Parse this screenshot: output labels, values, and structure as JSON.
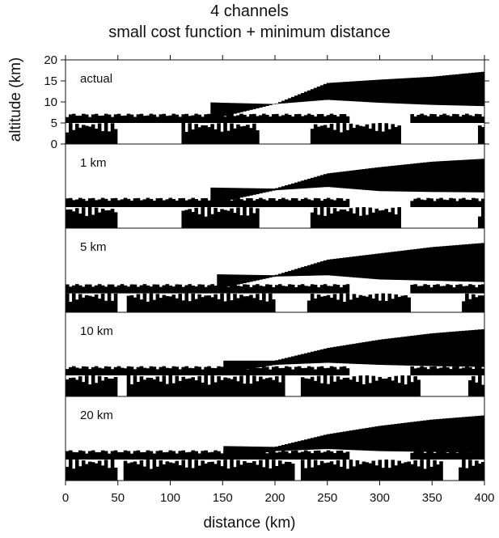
{
  "chart_data": {
    "type": "heatmap",
    "title": "4 channels",
    "subtitle": "small cost function + minimum distance",
    "xlabel": "distance (km)",
    "ylabel": "altitude (km)",
    "xlim": [
      0,
      400
    ],
    "ylim": [
      0,
      20
    ],
    "x_ticks": [
      0,
      50,
      100,
      150,
      200,
      250,
      300,
      350,
      400
    ],
    "x_tick_labels": [
      "0",
      "50",
      "100",
      "150",
      "200",
      "250",
      "300",
      "350",
      "400"
    ],
    "y_ticks": [
      0,
      5,
      10,
      15,
      20
    ],
    "y_tick_labels": [
      "0",
      "5",
      "10",
      "15",
      "20"
    ],
    "colors": {
      "ice": "#141414",
      "water": "#9e9e9e",
      "clear": "#ffffff"
    },
    "panels": [
      {
        "label": "actual",
        "upper_top": [
          10.5,
          10.8,
          10.2,
          9.8,
          9.5,
          14.5,
          15.3,
          16.0,
          17.2
        ],
        "upper_bottom": [
          6.8,
          7.0,
          6.8,
          6.5,
          9.5,
          10.5,
          9.8,
          9.3,
          9.0
        ],
        "upper_start_km": 140,
        "low_cloud_top": 5.0,
        "water_segments_km": [
          [
            0,
            50
          ],
          [
            110,
            185
          ],
          [
            235,
            320
          ],
          [
            395,
            400
          ]
        ]
      },
      {
        "label": "1 km",
        "upper_top": [
          10.0,
          10.2,
          9.8,
          9.6,
          9.4,
          13.0,
          14.5,
          15.8,
          16.5
        ],
        "upper_bottom": [
          6.5,
          6.8,
          6.6,
          6.3,
          9.0,
          9.8,
          8.8,
          8.6,
          8.5
        ],
        "upper_start_km": 140,
        "low_cloud_top": 5.0,
        "water_segments_km": [
          [
            0,
            50
          ],
          [
            110,
            185
          ],
          [
            235,
            320
          ],
          [
            395,
            400
          ]
        ]
      },
      {
        "label": "5 km",
        "upper_top": [
          9.5,
          9.5,
          9.2,
          9.0,
          8.8,
          12.5,
          14.0,
          15.5,
          16.5
        ],
        "upper_bottom": [
          6.0,
          6.2,
          6.0,
          5.8,
          8.5,
          8.8,
          7.8,
          7.5,
          7.2
        ],
        "upper_start_km": 145,
        "low_cloud_top": 4.5,
        "water_segments_km": [
          [
            0,
            50
          ],
          [
            60,
            200
          ],
          [
            230,
            330
          ],
          [
            380,
            400
          ]
        ]
      },
      {
        "label": "10 km",
        "upper_top": [
          9.0,
          9.2,
          8.8,
          8.5,
          8.5,
          11.5,
          13.5,
          15.0,
          16.0
        ],
        "upper_bottom": [
          5.8,
          5.8,
          5.6,
          5.5,
          7.5,
          8.0,
          7.5,
          7.2,
          7.0
        ],
        "upper_start_km": 150,
        "low_cloud_top": 5.0,
        "water_segments_km": [
          [
            0,
            50
          ],
          [
            60,
            210
          ],
          [
            225,
            340
          ],
          [
            385,
            400
          ]
        ]
      },
      {
        "label": "20 km",
        "upper_top": [
          8.5,
          8.8,
          8.5,
          8.2,
          8.0,
          11.0,
          13.0,
          14.5,
          15.5
        ],
        "upper_bottom": [
          5.5,
          5.5,
          5.5,
          5.2,
          7.0,
          7.5,
          7.0,
          6.8,
          6.5
        ],
        "upper_start_km": 150,
        "low_cloud_top": 5.0,
        "water_segments_km": [
          [
            0,
            50
          ],
          [
            55,
            220
          ],
          [
            225,
            360
          ],
          [
            375,
            400
          ]
        ]
      }
    ],
    "profile_x_km": [
      0,
      50,
      100,
      150,
      200,
      250,
      300,
      350,
      400
    ]
  }
}
